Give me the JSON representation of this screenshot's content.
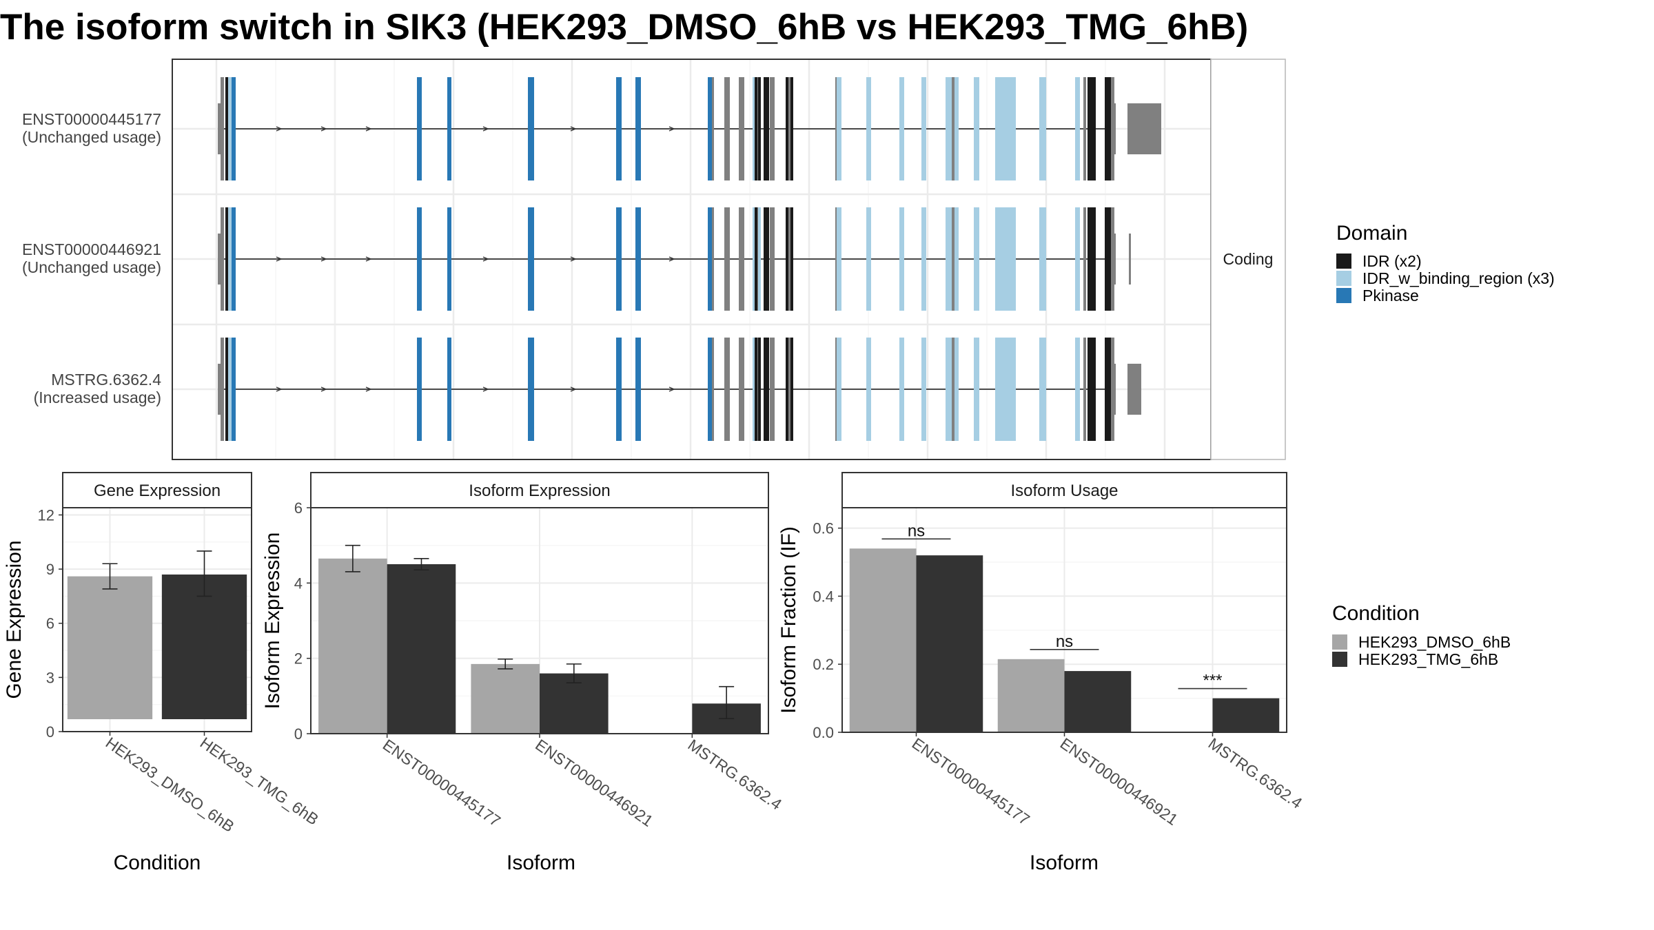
{
  "title": "The isoform switch in SIK3 (HEK293_DMSO_6hB vs HEK293_TMG_6hB)",
  "colors": {
    "idr": "#1a1a1a",
    "idr_binding": "#a6cee3",
    "pkinase": "#2878b5",
    "noncoding": "#808080",
    "dmso": "#a6a6a6",
    "tmg": "#333333",
    "strip_bg": "#ffffff",
    "grid": "#ebebeb"
  },
  "structure_panel": {
    "strip_label": "Coding",
    "transcripts": [
      {
        "id": "ENST00000445177",
        "usage": "(Unchanged usage)"
      },
      {
        "id": "ENST00000446921",
        "usage": "(Unchanged usage)"
      },
      {
        "id": "MSTRG.6362.4",
        "usage": "(Increased usage)"
      }
    ]
  },
  "domain_legend": {
    "title": "Domain",
    "items": [
      {
        "label": "IDR (x2)",
        "color": "#1a1a1a"
      },
      {
        "label": "IDR_w_binding_region (x3)",
        "color": "#a6cee3"
      },
      {
        "label": "Pkinase",
        "color": "#2878b5"
      }
    ]
  },
  "condition_legend": {
    "title": "Condition",
    "items": [
      {
        "label": "HEK293_DMSO_6hB",
        "color": "#a6a6a6"
      },
      {
        "label": "HEK293_TMG_6hB",
        "color": "#333333"
      }
    ]
  },
  "chart_data": [
    {
      "type": "bar",
      "title": "Gene Expression",
      "xlabel": "Condition",
      "ylabel": "Gene Expression",
      "ylim": [
        0,
        12.4
      ],
      "yticks": [
        0,
        3,
        6,
        9,
        12
      ],
      "categories": [
        "HEK293_DMSO_6hB",
        "HEK293_TMG_6hB"
      ],
      "series": [
        {
          "values": [
            8.6,
            8.7
          ],
          "err_low": [
            7.9,
            7.5
          ],
          "err_high": [
            9.3,
            10.0
          ]
        }
      ]
    },
    {
      "type": "bar",
      "title": "Isoform Expression",
      "xlabel": "Isoform",
      "ylabel": "Isoform Expression",
      "ylim": [
        0,
        6.0
      ],
      "yticks": [
        0,
        2,
        4,
        6
      ],
      "categories": [
        "ENST00000445177",
        "ENST00000446921",
        "MSTRG.6362.4"
      ],
      "series": [
        {
          "name": "HEK293_DMSO_6hB",
          "values": [
            4.65,
            1.85,
            0.0
          ],
          "err_low": [
            4.3,
            1.72,
            0.0
          ],
          "err_high": [
            5.0,
            1.98,
            0.0
          ]
        },
        {
          "name": "HEK293_TMG_6hB",
          "values": [
            4.5,
            1.6,
            0.8
          ],
          "err_low": [
            4.35,
            1.35,
            0.4
          ],
          "err_high": [
            4.65,
            1.85,
            1.25
          ]
        }
      ]
    },
    {
      "type": "bar",
      "title": "Isoform Usage",
      "xlabel": "Isoform",
      "ylabel": "Isoform Fraction (IF)",
      "ylim": [
        0,
        0.66
      ],
      "yticks": [
        0.0,
        0.2,
        0.4,
        0.6
      ],
      "categories": [
        "ENST00000445177",
        "ENST00000446921",
        "MSTRG.6362.4"
      ],
      "series": [
        {
          "name": "HEK293_DMSO_6hB",
          "values": [
            0.54,
            0.215,
            0.0
          ]
        },
        {
          "name": "HEK293_TMG_6hB",
          "values": [
            0.52,
            0.18,
            0.1
          ]
        }
      ],
      "significance": [
        "ns",
        "ns",
        "***"
      ]
    }
  ]
}
